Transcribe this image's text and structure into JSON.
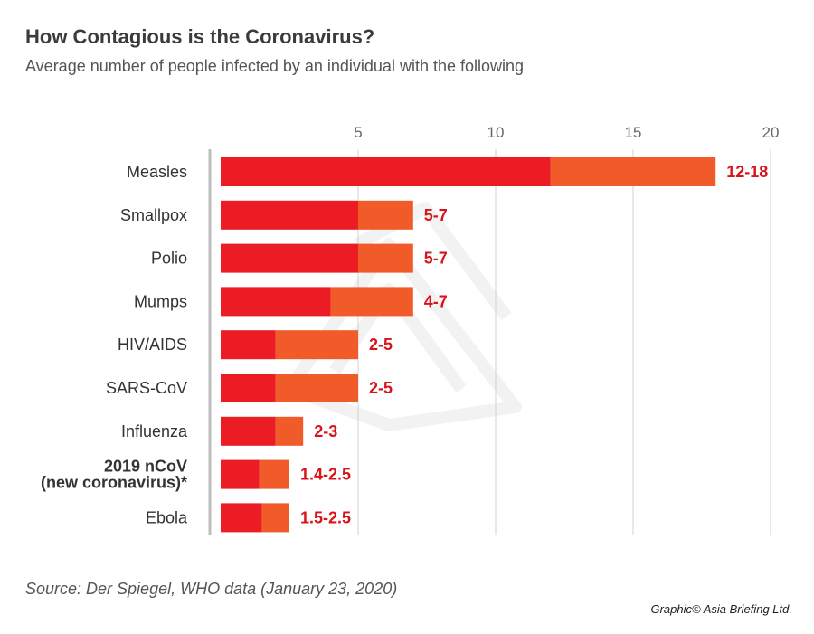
{
  "header": {
    "title": "How Contagious is the Coronavirus?",
    "subtitle": "Average number of people infected by an individual with the following"
  },
  "footer": {
    "source": "Source: Der Spiegel, WHO data (January 23, 2020)",
    "credit": "Graphic© Asia Briefing Ltd."
  },
  "colors": {
    "low": "#ec1c24",
    "high": "#f15a29",
    "value_label": "#d7141a",
    "grid": "#d0d0d0",
    "axis_line": "#bdbdbd",
    "text": "#333333"
  },
  "chart_data": {
    "type": "bar",
    "orientation": "horizontal",
    "stacked": "range",
    "title": "How Contagious is the Coronavirus?",
    "subtitle": "Average number of people infected by an individual with the following",
    "xlim": [
      0,
      20
    ],
    "xticks": [
      5,
      10,
      15,
      20
    ],
    "grid": true,
    "categories": [
      "Measles",
      "Smallpox",
      "Polio",
      "Mumps",
      "HIV/AIDS",
      "SARS-CoV",
      "Influenza",
      "2019 nCoV (new coronavirus)*",
      "Ebola"
    ],
    "category_lines": [
      [
        "Measles"
      ],
      [
        "Smallpox"
      ],
      [
        "Polio"
      ],
      [
        "Mumps"
      ],
      [
        "HIV/AIDS"
      ],
      [
        "SARS-CoV"
      ],
      [
        "Influenza"
      ],
      [
        "2019 nCoV",
        "(new coronavirus)*"
      ],
      [
        "Ebola"
      ]
    ],
    "bold_categories": [
      "2019 nCoV (new coronavirus)*"
    ],
    "low": [
      12,
      5,
      5,
      4,
      2,
      2,
      2,
      1.4,
      1.5
    ],
    "high": [
      18,
      7,
      7,
      7,
      5,
      5,
      3,
      2.5,
      2.5
    ],
    "labels": [
      "12-18",
      "5-7",
      "5-7",
      "4-7",
      "2-5",
      "2-5",
      "2-3",
      "1.4-2.5",
      "1.5-2.5"
    ]
  }
}
